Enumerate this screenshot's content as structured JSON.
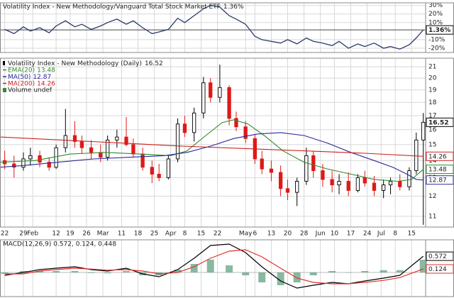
{
  "chart_data": [
    {
      "type": "line",
      "title": "Volatility Index - New Methodology/Vanguard Total Stock Market ETF",
      "color": "#2b3a6b",
      "x": [
        2,
        6,
        10,
        13,
        17,
        21,
        24,
        28,
        32,
        35,
        39,
        43,
        46,
        50,
        54,
        57,
        61,
        65,
        68,
        72,
        76,
        79,
        83,
        87,
        90,
        94,
        98,
        101,
        105,
        109,
        112,
        116,
        120,
        123,
        127,
        131,
        134,
        138,
        142,
        145,
        149,
        153,
        156,
        160,
        164,
        167,
        171,
        175,
        178,
        181
      ],
      "values": [
        2,
        -3,
        5,
        0,
        4,
        -2,
        6,
        12,
        5,
        8,
        2,
        6,
        10,
        14,
        8,
        12,
        4,
        -3,
        -1,
        2,
        15,
        10,
        18,
        26,
        30,
        28,
        18,
        14,
        8,
        -6,
        -10,
        -12,
        -14,
        -10,
        -15,
        -8,
        -12,
        -14,
        -17,
        -12,
        -20,
        -15,
        -18,
        -14,
        -20,
        -18,
        -21,
        -16,
        -8,
        1.36
      ],
      "ylim": [
        -25,
        33
      ],
      "yticks": [
        {
          "value": 30,
          "label": "30%"
        },
        {
          "value": 20,
          "label": "20%"
        },
        {
          "value": 10,
          "label": "10%"
        },
        {
          "value": 1.36,
          "label": "1.36%"
        },
        {
          "value": -10,
          "label": "-10%"
        },
        {
          "value": -20,
          "label": "-20%"
        }
      ],
      "grid": true
    },
    {
      "type": "candlestick",
      "title": "Volatility Index - New Methodology (Daily)",
      "up_color": "#000000",
      "down_color": "#e01818",
      "x": [
        2,
        6,
        10,
        13,
        17,
        21,
        24,
        28,
        32,
        35,
        39,
        43,
        46,
        50,
        54,
        57,
        61,
        65,
        68,
        72,
        76,
        79,
        83,
        87,
        90,
        94,
        98,
        101,
        105,
        109,
        112,
        116,
        120,
        123,
        127,
        131,
        134,
        138,
        142,
        145,
        149,
        153,
        156,
        160,
        164,
        167,
        171,
        175,
        178,
        181
      ],
      "open": [
        14.0,
        13.8,
        13.6,
        14.1,
        14.3,
        13.9,
        13.6,
        14.8,
        15.6,
        15.2,
        14.8,
        14.5,
        14.2,
        15.3,
        15.5,
        15.0,
        14.4,
        13.6,
        13.2,
        13.0,
        14.1,
        16.4,
        15.8,
        17.2,
        19.6,
        18.4,
        19.2,
        16.8,
        16.2,
        15.4,
        14.1,
        13.5,
        13.3,
        12.4,
        12.2,
        12.8,
        14.3,
        13.4,
        12.9,
        12.6,
        12.8,
        12.3,
        13.0,
        12.7,
        12.3,
        12.6,
        12.8,
        12.5,
        13.4,
        15.3
      ],
      "high": [
        14.6,
        14.3,
        14.5,
        14.8,
        14.6,
        14.2,
        15.0,
        17.5,
        16.6,
        15.6,
        15.3,
        15.0,
        15.6,
        16.0,
        16.9,
        15.4,
        14.8,
        14.0,
        13.8,
        14.3,
        16.8,
        17.0,
        17.6,
        20.1,
        20.0,
        21.2,
        19.4,
        17.3,
        16.6,
        15.7,
        14.6,
        14.0,
        13.7,
        12.9,
        13.0,
        14.8,
        14.6,
        13.8,
        13.4,
        13.2,
        13.3,
        13.2,
        13.4,
        13.1,
        12.9,
        13.0,
        13.2,
        13.6,
        15.8,
        17.2
      ],
      "low": [
        13.5,
        13.0,
        13.4,
        13.7,
        13.6,
        13.4,
        13.5,
        14.5,
        14.8,
        14.4,
        14.1,
        13.9,
        14.0,
        14.8,
        14.9,
        14.2,
        13.4,
        12.7,
        12.8,
        12.9,
        13.9,
        15.5,
        15.2,
        16.8,
        18.0,
        18.0,
        16.3,
        15.9,
        15.1,
        13.8,
        13.2,
        12.8,
        12.0,
        11.8,
        11.5,
        12.6,
        13.0,
        12.5,
        12.2,
        12.1,
        12.0,
        12.2,
        12.5,
        12.0,
        11.9,
        12.1,
        12.3,
        12.3,
        13.2,
        10.6
      ],
      "close": [
        13.8,
        13.6,
        14.1,
        14.3,
        13.9,
        13.6,
        14.8,
        15.6,
        15.2,
        14.8,
        14.5,
        14.2,
        15.3,
        15.5,
        15.0,
        14.4,
        13.6,
        13.2,
        13.0,
        14.1,
        16.4,
        15.8,
        17.2,
        19.6,
        18.4,
        19.2,
        16.8,
        16.2,
        15.4,
        14.1,
        13.5,
        13.3,
        12.4,
        12.2,
        12.8,
        14.3,
        13.4,
        12.9,
        12.6,
        12.8,
        12.3,
        13.0,
        12.7,
        12.3,
        12.6,
        12.8,
        12.5,
        13.4,
        15.3,
        16.52
      ],
      "series": [
        {
          "name": "EMA(20)",
          "color": "#2e8b2e",
          "x": [
            0,
            15,
            30,
            45,
            60,
            73,
            80,
            88,
            95,
            100,
            106,
            113,
            121,
            130,
            140,
            150,
            160,
            170,
            176,
            181
          ],
          "values": [
            13.9,
            14.0,
            14.4,
            14.5,
            14.4,
            14.3,
            14.6,
            15.6,
            16.5,
            16.7,
            16.4,
            15.6,
            14.6,
            13.9,
            13.5,
            13.2,
            12.9,
            12.8,
            12.9,
            13.48
          ]
        },
        {
          "name": "MA(50)",
          "color": "#2a2a9a",
          "x": [
            0,
            10,
            25,
            40,
            55,
            70,
            80,
            90,
            100,
            110,
            120,
            130,
            140,
            150,
            160,
            168,
            174,
            178,
            181
          ],
          "values": [
            13.6,
            13.7,
            13.9,
            14.1,
            14.2,
            14.3,
            14.5,
            14.9,
            15.4,
            15.7,
            15.8,
            15.6,
            15.1,
            14.5,
            14.0,
            13.6,
            13.2,
            12.9,
            12.87
          ]
        },
        {
          "name": "MA(200)",
          "color": "#d02020",
          "x": [
            0,
            26,
            52,
            78,
            104,
            130,
            156,
            181
          ],
          "values": [
            15.5,
            15.3,
            15.1,
            14.9,
            14.75,
            14.6,
            14.45,
            14.26
          ]
        }
      ],
      "legend_extra": "Volume undef",
      "legend_extra_color": "#3a8a3a",
      "log_scale": true,
      "ylim": [
        10.5,
        21.8
      ],
      "yticks": [
        11,
        12,
        13,
        14,
        15,
        16,
        17,
        18,
        19,
        20,
        21
      ],
      "xlim": [
        0,
        182
      ],
      "xticks": [
        {
          "value": 2,
          "label": "22"
        },
        {
          "value": 10,
          "label": "29"
        },
        {
          "value": 14,
          "label": "Feb"
        },
        {
          "value": 24,
          "label": "12"
        },
        {
          "value": 30,
          "label": "19"
        },
        {
          "value": 37,
          "label": "26"
        },
        {
          "value": 44,
          "label": "Mar"
        },
        {
          "value": 52,
          "label": "11"
        },
        {
          "value": 59,
          "label": "18"
        },
        {
          "value": 66,
          "label": "25"
        },
        {
          "value": 73,
          "label": "Apr"
        },
        {
          "value": 79,
          "label": "8"
        },
        {
          "value": 86,
          "label": "15"
        },
        {
          "value": 93,
          "label": "22"
        },
        {
          "value": 105,
          "label": "May"
        },
        {
          "value": 109,
          "label": "6"
        },
        {
          "value": 116,
          "label": "13"
        },
        {
          "value": 123,
          "label": "20"
        },
        {
          "value": 130,
          "label": "28"
        },
        {
          "value": 137,
          "label": "Jun"
        },
        {
          "value": 143,
          "label": "10"
        },
        {
          "value": 150,
          "label": "17"
        },
        {
          "value": 157,
          "label": "24"
        },
        {
          "value": 163,
          "label": "Jul"
        },
        {
          "value": 169,
          "label": "8"
        },
        {
          "value": 176,
          "label": "15"
        }
      ],
      "grid": true
    },
    {
      "type": "macd",
      "title": "MACD(12,26,9) 0.572, 0.124, 0.448",
      "x": [
        2,
        10,
        17,
        24,
        32,
        39,
        46,
        54,
        61,
        68,
        76,
        83,
        90,
        98,
        105,
        112,
        120,
        127,
        134,
        142,
        149,
        156,
        164,
        171,
        181
      ],
      "series": [
        {
          "style": "line",
          "color": "#000000",
          "values": [
            -0.1,
            0.0,
            0.1,
            0.15,
            0.2,
            0.1,
            0.05,
            0.15,
            -0.05,
            -0.15,
            0.1,
            0.5,
            0.95,
            1.0,
            0.7,
            0.2,
            -0.3,
            -0.55,
            -0.45,
            -0.35,
            -0.4,
            -0.3,
            -0.2,
            -0.1,
            0.572
          ]
        },
        {
          "style": "line",
          "color": "#e03030",
          "values": [
            -0.05,
            -0.05,
            0.05,
            0.1,
            0.15,
            0.12,
            0.08,
            0.1,
            0.05,
            -0.05,
            0.0,
            0.2,
            0.5,
            0.75,
            0.8,
            0.55,
            0.15,
            -0.2,
            -0.35,
            -0.4,
            -0.4,
            -0.35,
            -0.28,
            -0.18,
            0.124
          ]
        },
        {
          "style": "bars",
          "color": "#6aa88a",
          "values": [
            -0.05,
            0.05,
            0.05,
            0.05,
            0.05,
            -0.02,
            -0.03,
            0.05,
            -0.1,
            -0.1,
            0.1,
            0.3,
            0.45,
            0.25,
            -0.1,
            -0.35,
            -0.45,
            -0.35,
            -0.1,
            0.05,
            0.0,
            0.05,
            0.08,
            0.08,
            0.448
          ]
        }
      ],
      "ylim": [
        -0.85,
        1.15
      ]
    }
  ]
}
